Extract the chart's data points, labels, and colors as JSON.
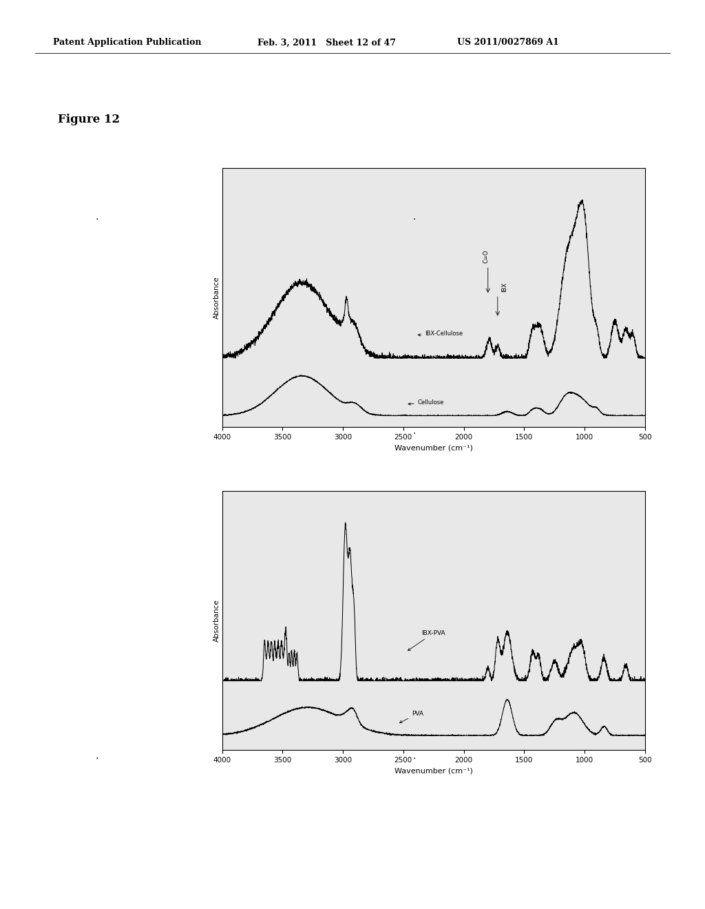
{
  "page_title_left": "Patent Application Publication",
  "page_title_mid": "Feb. 3, 2011   Sheet 12 of 47",
  "page_title_right": "US 2011/0027869 A1",
  "figure_label": "Figure 12",
  "background_color": "#ffffff",
  "plot1": {
    "xlabel": "Wavenumber (cm⁻¹)",
    "ylabel": "Absorbance",
    "xlim": [
      4000,
      500
    ],
    "xticks": [
      4000,
      3500,
      3000,
      2500,
      2000,
      1500,
      1000,
      500
    ],
    "label1": "IBX-Cellulose",
    "label2": "Cellulose",
    "annotation1": "C=O",
    "annotation2": "IBX"
  },
  "plot2": {
    "xlabel": "Wavenumber (cm⁻¹)",
    "ylabel": "Absorbance",
    "xlim": [
      4000,
      500
    ],
    "xticks": [
      4000,
      3500,
      3000,
      2500,
      2000,
      1500,
      1000,
      500
    ],
    "label1": "IBX-PVA",
    "label2": "PVA"
  }
}
